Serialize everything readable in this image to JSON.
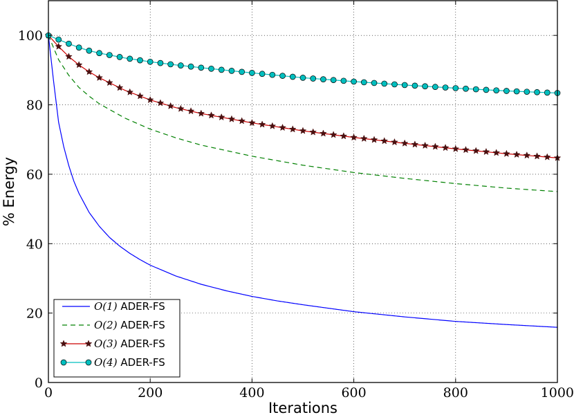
{
  "chart_data": {
    "type": "line",
    "xlabel": "Iterations",
    "ylabel": "% Energy",
    "xlim": [
      0,
      1000
    ],
    "ylim": [
      0,
      110
    ],
    "xticks": [
      "0",
      "200",
      "400",
      "600",
      "800",
      "1000"
    ],
    "yticks": [
      "0",
      "20",
      "40",
      "60",
      "80",
      "100"
    ],
    "grid": true,
    "legend_position": "lower-left",
    "series": [
      {
        "name": "O(1) ADER-FS",
        "name_math": "O(1)",
        "name_text": " ADER-FS",
        "color": "#0000ff",
        "style": "solid",
        "marker": "none",
        "x": [
          0,
          10,
          20,
          30,
          40,
          50,
          60,
          80,
          100,
          120,
          140,
          160,
          180,
          200,
          250,
          300,
          350,
          400,
          450,
          500,
          600,
          700,
          800,
          900,
          1000
        ],
        "values": [
          100,
          87,
          75,
          68,
          62.5,
          58,
          54.5,
          49,
          45,
          41.8,
          39.3,
          37.2,
          35.4,
          33.8,
          30.7,
          28.3,
          26.4,
          24.8,
          23.5,
          22.4,
          20.4,
          18.9,
          17.6,
          16.7,
          15.9
        ]
      },
      {
        "name": "O(2) ADER-FS",
        "name_math": "O(2)",
        "name_text": " ADER-FS",
        "color": "#008000",
        "style": "dashed",
        "marker": "none",
        "x": [
          0,
          20,
          40,
          60,
          80,
          100,
          150,
          200,
          250,
          300,
          400,
          500,
          600,
          700,
          800,
          900,
          1000
        ],
        "values": [
          100,
          93,
          88.5,
          85,
          82.5,
          80.3,
          76.2,
          73,
          70.5,
          68.4,
          65.2,
          62.6,
          60.5,
          58.8,
          57.3,
          56,
          55
        ]
      },
      {
        "name": "O(3) ADER-FS",
        "name_math": "O(3)",
        "name_text": " ADER-FS",
        "color": "#cc0000",
        "style": "solid",
        "marker": "star",
        "marker_color": "#4a1010",
        "x": [
          0,
          20,
          40,
          60,
          80,
          100,
          150,
          200,
          250,
          300,
          400,
          500,
          600,
          700,
          800,
          900,
          1000
        ],
        "values": [
          100,
          96.8,
          93.9,
          91.5,
          89.5,
          87.8,
          84.2,
          81.4,
          79.2,
          77.5,
          74.8,
          72.5,
          70.6,
          68.9,
          67.3,
          65.9,
          64.7
        ]
      },
      {
        "name": "O(4) ADER-FS",
        "name_math": "O(4)",
        "name_text": " ADER-FS",
        "color": "#00bfbf",
        "style": "solid",
        "marker": "circle",
        "marker_color": "#00bfbf",
        "x": [
          0,
          20,
          40,
          60,
          80,
          100,
          150,
          200,
          250,
          300,
          400,
          500,
          600,
          700,
          800,
          900,
          1000
        ],
        "values": [
          100,
          98.8,
          97.6,
          96.5,
          95.6,
          94.9,
          93.5,
          92.4,
          91.5,
          90.7,
          89.2,
          87.8,
          86.7,
          85.7,
          84.8,
          84,
          83.4
        ]
      }
    ]
  }
}
